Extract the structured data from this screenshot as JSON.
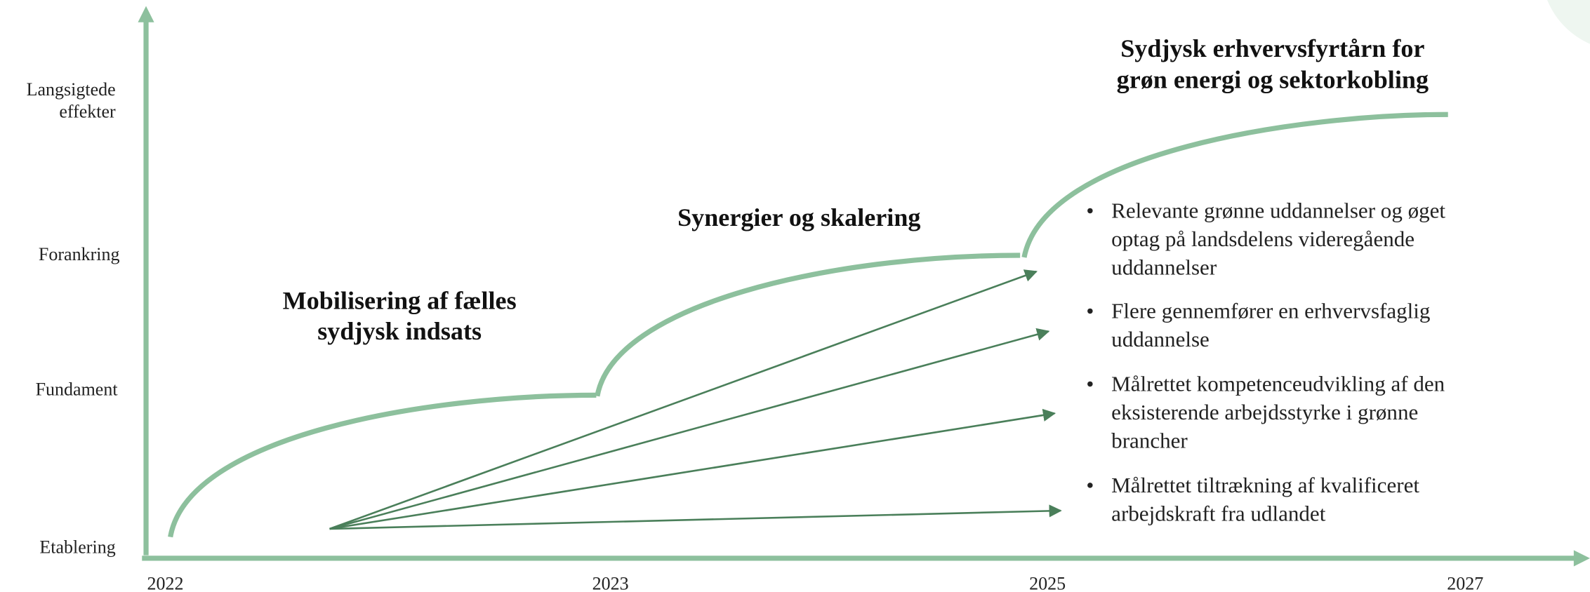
{
  "y_axis": {
    "levels": [
      [
        "Langsigtede",
        "effekter"
      ],
      [
        "Forankring"
      ],
      [
        "Fundament"
      ],
      [
        "Etablering"
      ]
    ]
  },
  "x_axis": {
    "labels": [
      "2022",
      "2023",
      "2025",
      "2027"
    ]
  },
  "phases": [
    {
      "title": [
        "Mobilisering af fælles",
        "sydjysk indsats"
      ]
    },
    {
      "title": [
        "Synergier og skalering"
      ]
    },
    {
      "title": [
        "Sydjysk erhvervsfyrtårn for",
        "grøn energi og sektorkobling"
      ]
    }
  ],
  "bullets": [
    [
      "Relevante grønne uddannelser og øget",
      "optag på landsdelens videregående",
      "uddannelser"
    ],
    [
      "Flere gennemfører en erhvervsfaglig",
      "uddannelse"
    ],
    [
      "Målrettet kompetenceudvikling af den",
      "eksisterende arbejdsstyrke i grønne",
      "brancher"
    ],
    [
      "Målrettet tiltrækning af kvalificeret",
      "arbejdskraft fra udlandet"
    ]
  ]
}
